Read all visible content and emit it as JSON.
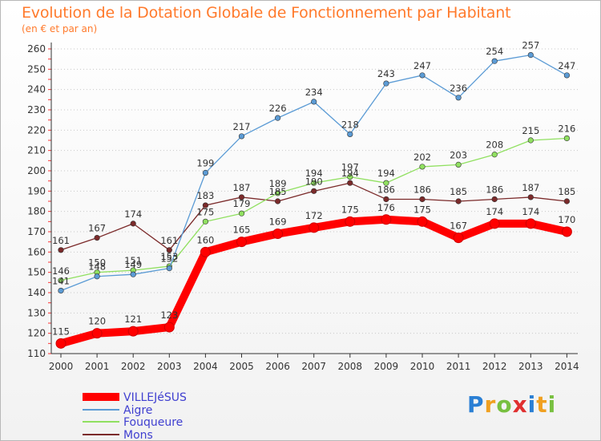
{
  "chart_data": {
    "type": "line",
    "title": "Evolution de la Dotation Globale de Fonctionnement par Habitant",
    "subtitle": "(en € et par an)",
    "x": [
      "2000",
      "2001",
      "2002",
      "2003",
      "2004",
      "2005",
      "2006",
      "2007",
      "2008",
      "2009",
      "2010",
      "2011",
      "2012",
      "2013",
      "2014"
    ],
    "yticks": [
      "110",
      "120",
      "130",
      "140",
      "150",
      "160",
      "170",
      "180",
      "190",
      "200",
      "210",
      "220",
      "230",
      "240",
      "250",
      "260"
    ],
    "ylim": [
      110,
      260
    ],
    "grid": "horizontal dotted",
    "legend_position": "bottom-left",
    "series": [
      {
        "name": "VILLEJéSUS",
        "color": "#ff0000",
        "values": [
          115,
          120,
          121,
          123,
          160,
          165,
          169,
          172,
          175,
          176,
          175,
          167,
          174,
          174,
          170
        ],
        "labels": [
          "115",
          "120",
          "121",
          "123",
          "160",
          "165",
          "169",
          "172",
          "175",
          "176",
          "175",
          "167",
          "174",
          "174",
          "170"
        ]
      },
      {
        "name": "Aigre",
        "color": "#5b9bd5",
        "values": [
          141,
          148,
          149,
          152,
          199,
          217,
          226,
          234,
          218,
          243,
          247,
          236,
          254,
          257,
          247
        ],
        "labels": [
          "141",
          "148",
          "149",
          "152",
          "199",
          "217",
          "226",
          "234",
          "218",
          "243",
          "247",
          "236",
          "254",
          "257",
          "247"
        ]
      },
      {
        "name": "Fouqueure",
        "color": "#90e060",
        "values": [
          146,
          150,
          151,
          153,
          175,
          179,
          189,
          194,
          197,
          194,
          202,
          203,
          208,
          215,
          216
        ],
        "labels": [
          "146",
          "150",
          "151",
          "153",
          "175",
          "179",
          "189",
          "194",
          "197",
          "194",
          "202",
          "203",
          "208",
          "215",
          "216"
        ]
      },
      {
        "name": "Mons",
        "color": "#7b2a2a",
        "values": [
          161,
          167,
          174,
          161,
          183,
          187,
          185,
          190,
          194,
          186,
          186,
          185,
          186,
          187,
          185
        ],
        "labels": [
          "161",
          "167",
          "174",
          "161",
          "183",
          "187",
          "185",
          "190",
          "194",
          "186",
          "186",
          "185",
          "186",
          "187",
          "185"
        ]
      }
    ]
  },
  "logo": {
    "text": "Proxiti",
    "letters": [
      "P",
      "r",
      "o",
      "x",
      "i",
      "t",
      "i"
    ]
  }
}
